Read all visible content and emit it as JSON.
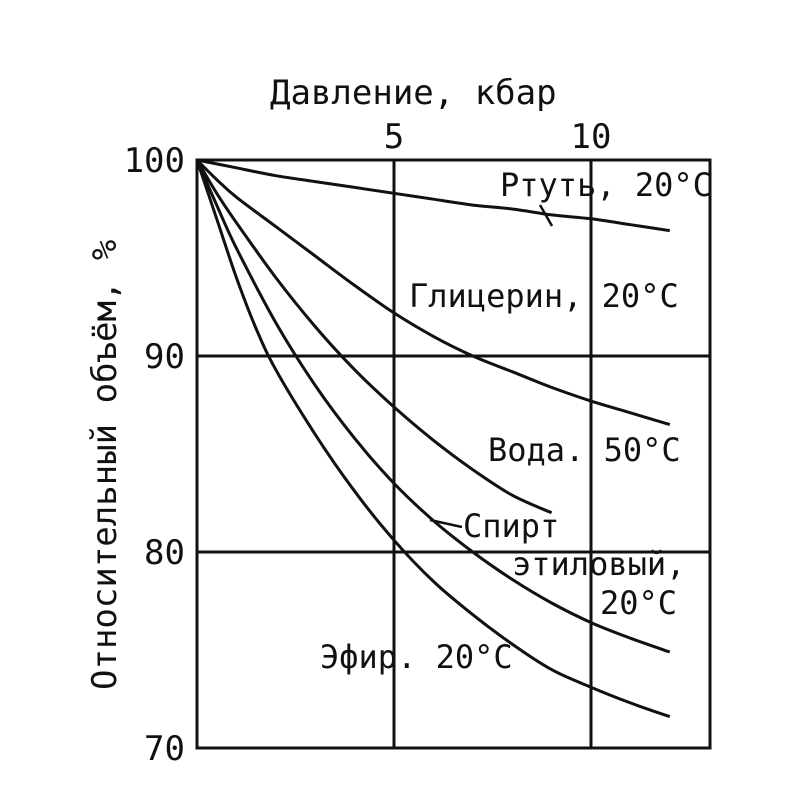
{
  "chart_data": {
    "type": "line",
    "title": "Давление, кбар",
    "xlabel": "Давление, кбар",
    "ylabel": "Относительный объём, %",
    "xlim": [
      0,
      12
    ],
    "ylim": [
      70,
      100
    ],
    "x_ticks": [
      5,
      10
    ],
    "x_tick_labels": [
      "5",
      "10"
    ],
    "y_ticks": [
      70,
      80,
      90,
      100
    ],
    "y_tick_labels": [
      "70",
      "80",
      "90",
      "100"
    ],
    "grid": true,
    "series": [
      {
        "name": "Ртуть, 20°C",
        "x": [
          0,
          1,
          2,
          3,
          4,
          5,
          6,
          7,
          8,
          9,
          10,
          11,
          12
        ],
        "y": [
          100,
          99.6,
          99.2,
          98.9,
          98.6,
          98.3,
          98.0,
          97.7,
          97.5,
          97.2,
          97.0,
          96.7,
          96.4
        ]
      },
      {
        "name": "Глицерин, 20°C",
        "x": [
          0,
          0.5,
          1,
          2,
          3,
          4,
          5,
          6,
          7,
          8,
          9,
          10,
          11,
          12
        ],
        "y": [
          100,
          99.0,
          98.1,
          96.6,
          95.1,
          93.6,
          92.2,
          91.0,
          90.0,
          89.2,
          88.4,
          87.7,
          87.1,
          86.5
        ]
      },
      {
        "name": "Вода, 50°C",
        "x": [
          0,
          0.5,
          1,
          2,
          3,
          4,
          5,
          6,
          7,
          8,
          9
        ],
        "y": [
          100,
          98.3,
          96.8,
          94.0,
          91.5,
          89.3,
          87.4,
          85.7,
          84.2,
          82.9,
          82.0
        ]
      },
      {
        "name": "Спирт этиловый, 20°C",
        "x": [
          0,
          0.5,
          1,
          2,
          3,
          4,
          5,
          6,
          7,
          8,
          9,
          10,
          11,
          12
        ],
        "y": [
          100,
          97.7,
          95.5,
          91.7,
          88.5,
          85.8,
          83.5,
          81.6,
          80.0,
          78.6,
          77.4,
          76.4,
          75.6,
          74.9
        ]
      },
      {
        "name": "Эфир, 20°C",
        "x": [
          0,
          0.5,
          1,
          1.5,
          2,
          3,
          4,
          5,
          6,
          7,
          8,
          9,
          10,
          11,
          12
        ],
        "y": [
          100,
          97.0,
          94.0,
          91.4,
          89.3,
          86.0,
          83.1,
          80.6,
          78.5,
          76.8,
          75.3,
          74.0,
          73.1,
          72.3,
          71.6
        ]
      }
    ],
    "annotations": [
      {
        "label": "Ртуть, 20°C"
      },
      {
        "label": "Глицерин, 20°C"
      },
      {
        "label": "Вода. 50°C"
      },
      {
        "label": "Спирт"
      },
      {
        "label": "этиловый,"
      },
      {
        "label": "20°C"
      },
      {
        "label": "Эфир. 20°C"
      }
    ]
  }
}
